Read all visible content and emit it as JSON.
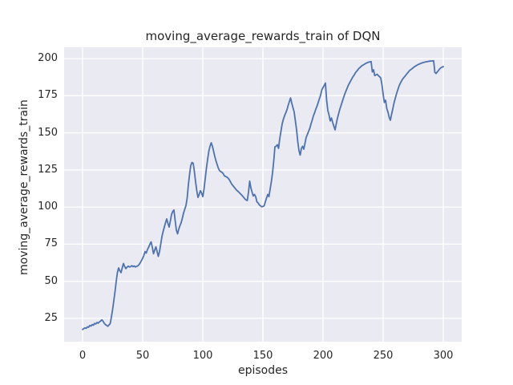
{
  "chart_data": {
    "type": "line",
    "title": "moving_average_rewards_train of DQN",
    "xlabel": "episodes",
    "ylabel": "moving_average_rewards_train",
    "xticks": [
      0,
      50,
      100,
      150,
      200,
      250,
      300
    ],
    "yticks": [
      25,
      50,
      75,
      100,
      125,
      150,
      175,
      200
    ],
    "xlim": [
      -15.33,
      315.33
    ],
    "ylim": [
      9.3,
      207.6
    ],
    "grid": true,
    "legend": "none",
    "colors": {
      "line": "#4C72B0",
      "plot_background": "#EAEAF2",
      "gridline": "#FFFFFF",
      "text": "#262626",
      "figure_background": "#FFFFFF"
    },
    "points": [
      [
        0,
        17.5
      ],
      [
        2,
        18.6
      ],
      [
        3,
        18.3
      ],
      [
        4,
        19.3
      ],
      [
        5,
        19.0
      ],
      [
        6,
        20.2
      ],
      [
        7,
        19.8
      ],
      [
        8,
        20.8
      ],
      [
        9,
        20.4
      ],
      [
        10,
        21.6
      ],
      [
        11,
        21.2
      ],
      [
        12,
        22.2
      ],
      [
        13,
        21.8
      ],
      [
        14,
        22.6
      ],
      [
        15,
        23.2
      ],
      [
        16,
        24.0
      ],
      [
        17,
        23.2
      ],
      [
        18,
        21.8
      ],
      [
        19,
        20.8
      ],
      [
        20,
        20.3
      ],
      [
        21,
        19.7
      ],
      [
        22,
        20.6
      ],
      [
        23,
        21.5
      ],
      [
        24,
        26.0
      ],
      [
        25,
        31.0
      ],
      [
        26,
        37.0
      ],
      [
        27,
        43.0
      ],
      [
        28,
        50.0
      ],
      [
        29,
        56.0
      ],
      [
        30,
        59.0
      ],
      [
        31,
        57.0
      ],
      [
        32,
        55.8
      ],
      [
        33,
        59.0
      ],
      [
        34,
        62.0
      ],
      [
        35,
        60.0
      ],
      [
        36,
        58.5
      ],
      [
        37,
        59.5
      ],
      [
        38,
        60.2
      ],
      [
        39,
        59.6
      ],
      [
        40,
        59.9
      ],
      [
        41,
        60.5
      ],
      [
        42,
        59.8
      ],
      [
        43,
        60.3
      ],
      [
        44,
        59.6
      ],
      [
        45,
        60.1
      ],
      [
        46,
        60.4
      ],
      [
        47,
        61.2
      ],
      [
        48,
        62.5
      ],
      [
        49,
        64.0
      ],
      [
        50,
        65.5
      ],
      [
        51,
        67.5
      ],
      [
        52,
        70.0
      ],
      [
        53,
        69.0
      ],
      [
        54,
        71.5
      ],
      [
        55,
        73.0
      ],
      [
        56,
        75.0
      ],
      [
        57,
        76.5
      ],
      [
        58,
        73.0
      ],
      [
        59,
        68.5
      ],
      [
        60,
        71.0
      ],
      [
        61,
        73.2
      ],
      [
        62,
        70.0
      ],
      [
        63,
        66.8
      ],
      [
        64,
        70.0
      ],
      [
        65,
        75.0
      ],
      [
        66,
        80.0
      ],
      [
        67,
        83.5
      ],
      [
        68,
        86.5
      ],
      [
        69,
        89.5
      ],
      [
        70,
        92.0
      ],
      [
        71,
        89.0
      ],
      [
        72,
        86.5
      ],
      [
        73,
        90.5
      ],
      [
        74,
        95.0
      ],
      [
        75,
        97.0
      ],
      [
        76,
        98.0
      ],
      [
        77,
        91.0
      ],
      [
        78,
        84.5
      ],
      [
        79,
        82.0
      ],
      [
        80,
        85.0
      ],
      [
        81,
        87.5
      ],
      [
        82,
        89.5
      ],
      [
        83,
        92.5
      ],
      [
        84,
        96.0
      ],
      [
        85,
        98.5
      ],
      [
        86,
        101.0
      ],
      [
        87,
        106.0
      ],
      [
        88,
        115.0
      ],
      [
        89,
        122.0
      ],
      [
        90,
        128.0
      ],
      [
        91,
        130.0
      ],
      [
        92,
        129.5
      ],
      [
        93,
        124.0
      ],
      [
        94,
        117.0
      ],
      [
        95,
        111.0
      ],
      [
        96,
        106.5
      ],
      [
        97,
        108.5
      ],
      [
        98,
        111.0
      ],
      [
        99,
        109.5
      ],
      [
        100,
        107.0
      ],
      [
        101,
        112.0
      ],
      [
        102,
        119.0
      ],
      [
        103,
        126.0
      ],
      [
        104,
        132.0
      ],
      [
        105,
        137.5
      ],
      [
        106,
        141.0
      ],
      [
        107,
        143.3
      ],
      [
        108,
        141.0
      ],
      [
        109,
        137.5
      ],
      [
        110,
        134.0
      ],
      [
        111,
        131.0
      ],
      [
        112,
        128.5
      ],
      [
        113,
        126.0
      ],
      [
        114,
        124.5
      ],
      [
        115,
        123.8
      ],
      [
        116,
        123.4
      ],
      [
        117,
        122.5
      ],
      [
        118,
        121.0
      ],
      [
        119,
        120.6
      ],
      [
        120,
        120.2
      ],
      [
        121,
        119.5
      ],
      [
        122,
        118.5
      ],
      [
        123,
        117.0
      ],
      [
        124,
        115.5
      ],
      [
        125,
        114.5
      ],
      [
        126,
        113.5
      ],
      [
        127,
        112.5
      ],
      [
        128,
        111.5
      ],
      [
        129,
        110.8
      ],
      [
        130,
        110.0
      ],
      [
        131,
        109.2
      ],
      [
        132,
        108.4
      ],
      [
        133,
        107.5
      ],
      [
        134,
        106.5
      ],
      [
        135,
        105.5
      ],
      [
        136,
        104.8
      ],
      [
        137,
        104.4
      ],
      [
        138,
        110.0
      ],
      [
        139,
        117.5
      ],
      [
        140,
        113.0
      ],
      [
        141,
        110.0
      ],
      [
        142,
        107.5
      ],
      [
        143,
        108.5
      ],
      [
        144,
        107.0
      ],
      [
        145,
        103.5
      ],
      [
        146,
        102.8
      ],
      [
        147,
        101.5
      ],
      [
        148,
        100.8
      ],
      [
        149,
        100.2
      ],
      [
        150,
        100.4
      ],
      [
        151,
        100.8
      ],
      [
        152,
        103.5
      ],
      [
        153,
        106.0
      ],
      [
        154,
        108.5
      ],
      [
        155,
        107.0
      ],
      [
        156,
        112.0
      ],
      [
        157,
        117.0
      ],
      [
        158,
        123.0
      ],
      [
        159,
        131.0
      ],
      [
        160,
        140.5
      ],
      [
        161,
        141.0
      ],
      [
        162,
        142.0
      ],
      [
        163,
        139.5
      ],
      [
        164,
        146.0
      ],
      [
        165,
        151.0
      ],
      [
        166,
        156.0
      ],
      [
        167,
        159.0
      ],
      [
        168,
        161.5
      ],
      [
        169,
        163.5
      ],
      [
        170,
        165.5
      ],
      [
        171,
        168.5
      ],
      [
        172,
        171.0
      ],
      [
        173,
        173.5
      ],
      [
        174,
        170.0
      ],
      [
        175,
        167.0
      ],
      [
        176,
        164.0
      ],
      [
        177,
        158.0
      ],
      [
        178,
        152.0
      ],
      [
        179,
        144.0
      ],
      [
        180,
        138.0
      ],
      [
        181,
        135.0
      ],
      [
        182,
        139.5
      ],
      [
        183,
        141.0
      ],
      [
        184,
        139.0
      ],
      [
        185,
        143.0
      ],
      [
        186,
        147.0
      ],
      [
        187,
        149.0
      ],
      [
        188,
        151.0
      ],
      [
        189,
        153.0
      ],
      [
        190,
        156.0
      ],
      [
        191,
        158.5
      ],
      [
        192,
        161.5
      ],
      [
        193,
        163.5
      ],
      [
        194,
        166.0
      ],
      [
        195,
        168.0
      ],
      [
        196,
        170.5
      ],
      [
        197,
        173.0
      ],
      [
        198,
        175.5
      ],
      [
        199,
        179.0
      ],
      [
        200,
        180.5
      ],
      [
        201,
        182.0
      ],
      [
        202,
        183.5
      ],
      [
        203,
        172.0
      ],
      [
        204,
        165.0
      ],
      [
        205,
        162.0
      ],
      [
        206,
        158.0
      ],
      [
        207,
        160.0
      ],
      [
        208,
        157.0
      ],
      [
        209,
        154.5
      ],
      [
        210,
        152.0
      ],
      [
        211,
        156.0
      ],
      [
        212,
        160.0
      ],
      [
        213,
        163.0
      ],
      [
        214,
        166.0
      ],
      [
        215,
        168.5
      ],
      [
        216,
        171.0
      ],
      [
        217,
        173.5
      ],
      [
        218,
        176.0
      ],
      [
        219,
        178.0
      ],
      [
        220,
        180.0
      ],
      [
        221,
        182.0
      ],
      [
        222,
        183.5
      ],
      [
        223,
        185.0
      ],
      [
        224,
        186.5
      ],
      [
        225,
        188.0
      ],
      [
        226,
        189.0
      ],
      [
        227,
        190.5
      ],
      [
        228,
        191.5
      ],
      [
        229,
        192.5
      ],
      [
        230,
        193.5
      ],
      [
        231,
        194.2
      ],
      [
        232,
        195.0
      ],
      [
        233,
        195.5
      ],
      [
        234,
        196.0
      ],
      [
        235,
        196.5
      ],
      [
        236,
        197.0
      ],
      [
        237,
        197.3
      ],
      [
        238,
        197.6
      ],
      [
        239,
        197.8
      ],
      [
        240,
        198.0
      ],
      [
        241,
        191.0
      ],
      [
        242,
        192.5
      ],
      [
        243,
        188.5
      ],
      [
        244,
        189.0
      ],
      [
        245,
        189.5
      ],
      [
        246,
        188.5
      ],
      [
        247,
        187.8
      ],
      [
        248,
        187.0
      ],
      [
        249,
        182.5
      ],
      [
        250,
        176.0
      ],
      [
        251,
        170.5
      ],
      [
        252,
        172.0
      ],
      [
        253,
        166.5
      ],
      [
        254,
        164.0
      ],
      [
        255,
        160.5
      ],
      [
        256,
        158.5
      ],
      [
        257,
        162.5
      ],
      [
        258,
        166.0
      ],
      [
        259,
        170.0
      ],
      [
        260,
        173.0
      ],
      [
        261,
        176.0
      ],
      [
        262,
        178.5
      ],
      [
        263,
        181.0
      ],
      [
        264,
        183.0
      ],
      [
        265,
        184.5
      ],
      [
        266,
        186.0
      ],
      [
        267,
        187.0
      ],
      [
        268,
        188.0
      ],
      [
        269,
        189.0
      ],
      [
        270,
        190.0
      ],
      [
        271,
        191.0
      ],
      [
        272,
        192.0
      ],
      [
        273,
        192.6
      ],
      [
        274,
        193.2
      ],
      [
        275,
        193.8
      ],
      [
        276,
        194.5
      ],
      [
        277,
        195.0
      ],
      [
        278,
        195.5
      ],
      [
        279,
        196.0
      ],
      [
        280,
        196.3
      ],
      [
        281,
        196.7
      ],
      [
        282,
        197.0
      ],
      [
        283,
        197.3
      ],
      [
        284,
        197.5
      ],
      [
        285,
        197.7
      ],
      [
        286,
        197.9
      ],
      [
        287,
        198.0
      ],
      [
        288,
        198.2
      ],
      [
        289,
        198.3
      ],
      [
        290,
        198.4
      ],
      [
        291,
        198.4
      ],
      [
        292,
        198.5
      ],
      [
        293,
        190.8
      ],
      [
        294,
        190.0
      ],
      [
        295,
        191.0
      ],
      [
        296,
        192.0
      ],
      [
        297,
        193.0
      ],
      [
        298,
        193.8
      ],
      [
        299,
        194.3
      ],
      [
        300,
        194.6
      ]
    ]
  }
}
